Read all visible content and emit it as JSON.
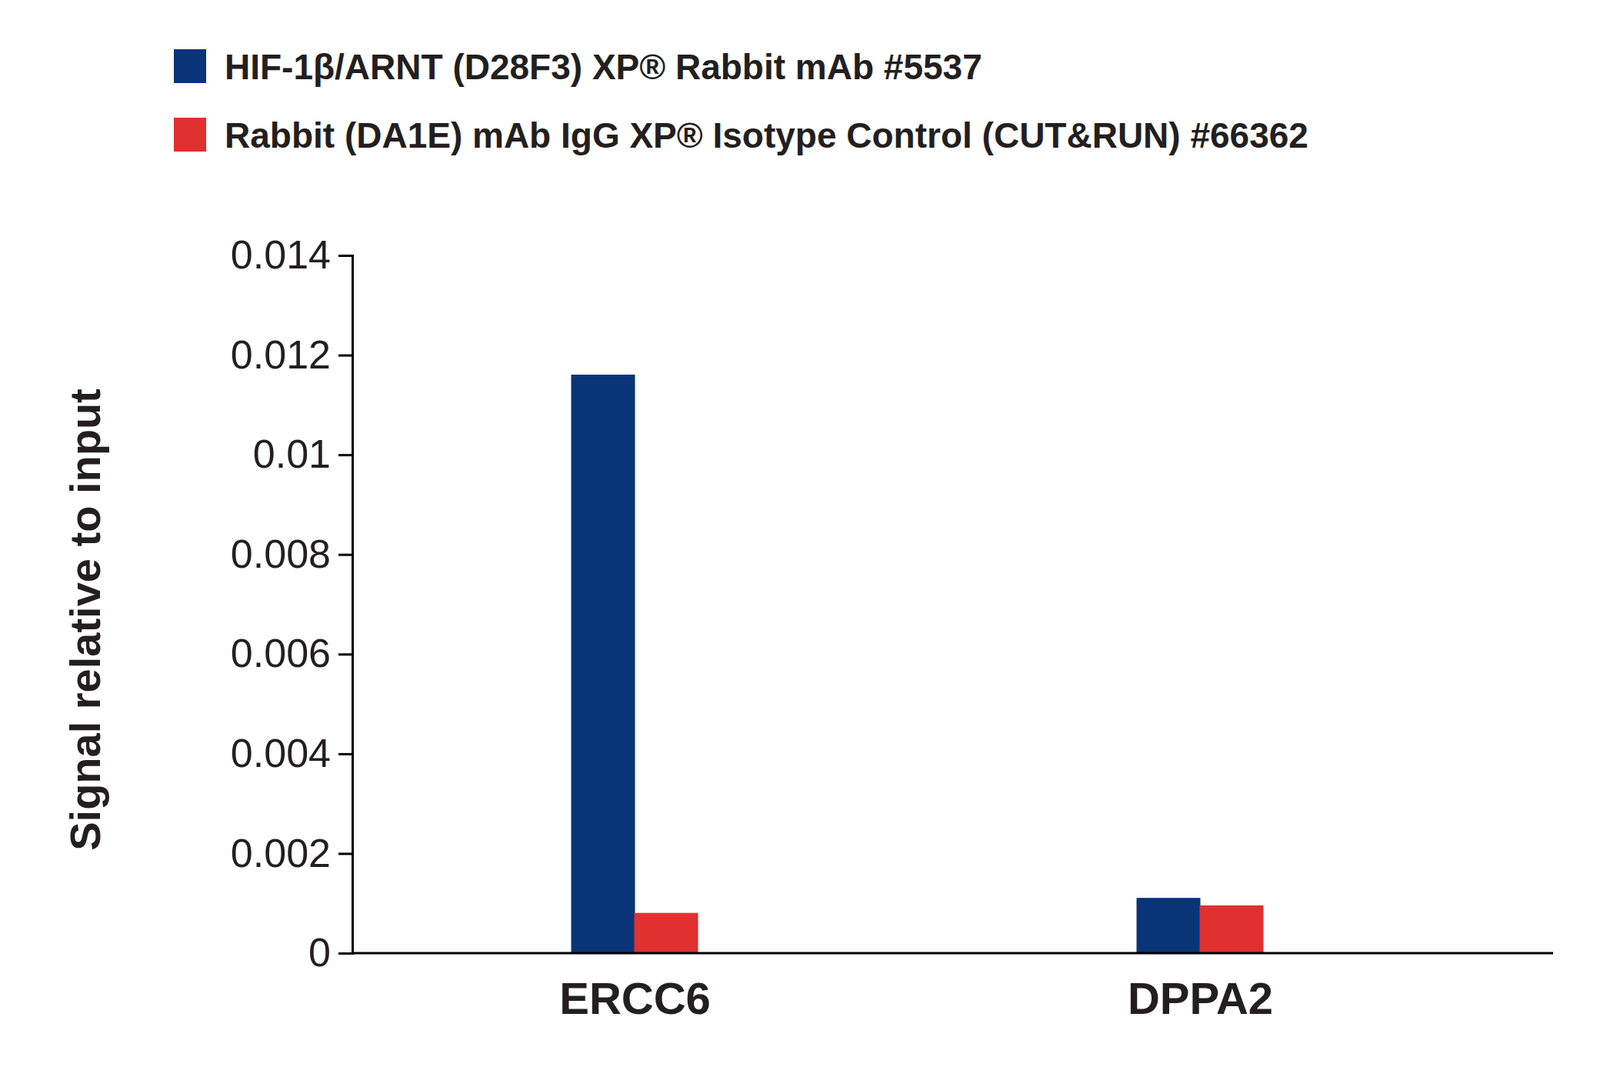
{
  "chart_data": {
    "type": "bar",
    "categories": [
      "ERCC6",
      "DPPA2"
    ],
    "series": [
      {
        "name": "HIF-1β/ARNT (D28F3) XP® Rabbit mAb #5537",
        "color": "#0a3478",
        "values": [
          0.0116,
          0.0011
        ]
      },
      {
        "name": "Rabbit (DA1E) mAb IgG XP® Isotype Control (CUT&RUN) #66362",
        "color": "#e0302f",
        "values": [
          0.0008,
          0.00095
        ]
      }
    ],
    "ylabel": "Signal relative to input",
    "ylim": [
      0,
      0.014
    ],
    "yticks": [
      0,
      0.002,
      0.004,
      0.006,
      0.008,
      0.01,
      0.012,
      0.014
    ],
    "grid": false,
    "legend": "top-left"
  }
}
